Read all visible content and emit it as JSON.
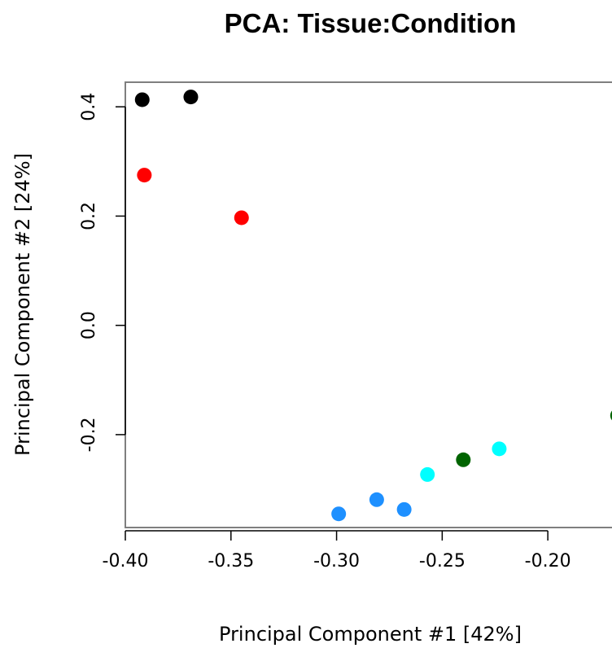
{
  "chart_data": {
    "type": "scatter",
    "title": "PCA: Tissue:Condition",
    "xlabel": "Principal Component #1 [42%]",
    "ylabel": "Principal Component #2 [24%]",
    "xlim": [
      -0.4,
      -0.165
    ],
    "ylim": [
      -0.37,
      0.445
    ],
    "xticks": [
      -0.4,
      -0.35,
      -0.3,
      -0.25,
      -0.2
    ],
    "xtick_labels": [
      "-0.40",
      "-0.35",
      "-0.30",
      "-0.25",
      "-0.20"
    ],
    "yticks": [
      -0.2,
      0.0,
      0.2,
      0.4
    ],
    "ytick_labels": [
      "-0.2",
      "0.0",
      "0.2",
      "0.4"
    ],
    "grid": false,
    "legend": "none",
    "points": [
      {
        "x": -0.392,
        "y": 0.413,
        "color": "#000000"
      },
      {
        "x": -0.369,
        "y": 0.418,
        "color": "#000000"
      },
      {
        "x": -0.391,
        "y": 0.275,
        "color": "#ff0000"
      },
      {
        "x": -0.345,
        "y": 0.197,
        "color": "#ff0000"
      },
      {
        "x": -0.299,
        "y": -0.345,
        "color": "#1e90ff"
      },
      {
        "x": -0.281,
        "y": -0.319,
        "color": "#1e90ff"
      },
      {
        "x": -0.268,
        "y": -0.337,
        "color": "#1e90ff"
      },
      {
        "x": -0.257,
        "y": -0.273,
        "color": "#00ffff"
      },
      {
        "x": -0.223,
        "y": -0.226,
        "color": "#00ffff"
      },
      {
        "x": -0.24,
        "y": -0.246,
        "color": "#006400"
      },
      {
        "x": -0.167,
        "y": -0.165,
        "color": "#006400"
      }
    ]
  }
}
